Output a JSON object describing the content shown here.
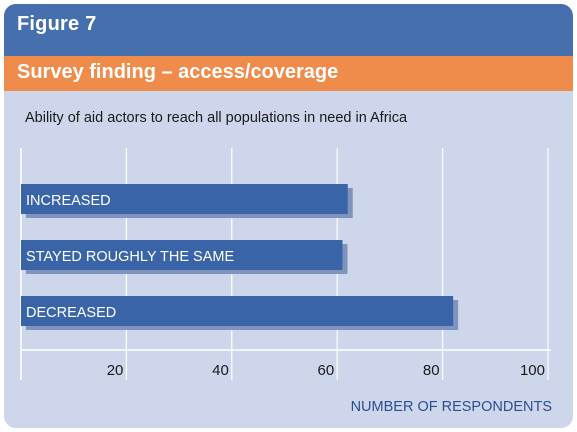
{
  "figure": {
    "label": "Figure 7",
    "title": "Survey finding – access/coverage"
  },
  "chart_data": {
    "type": "bar",
    "orientation": "horizontal",
    "title": "Ability of aid actors to reach all populations in need in Africa",
    "xlabel": "NUMBER OF RESPONDENTS",
    "ylabel": "",
    "categories": [
      "INCREASED",
      "STAYED ROUGHLY THE SAME",
      "DECREASED"
    ],
    "values": [
      62,
      61,
      82
    ],
    "xlim": [
      0,
      100
    ],
    "xticks": [
      20,
      40,
      60,
      80,
      100
    ],
    "grid": "vertical",
    "legend": "none",
    "colors": {
      "bar": "#3a64a8",
      "bar_shadow": "#7f93bd",
      "grid": "#ffffff",
      "tick_label": "#1a1a1a",
      "xlabel": "#2b4e94",
      "header": "#466fae",
      "title_band": "#ef8c4c",
      "background": "#cdd6ea"
    }
  }
}
